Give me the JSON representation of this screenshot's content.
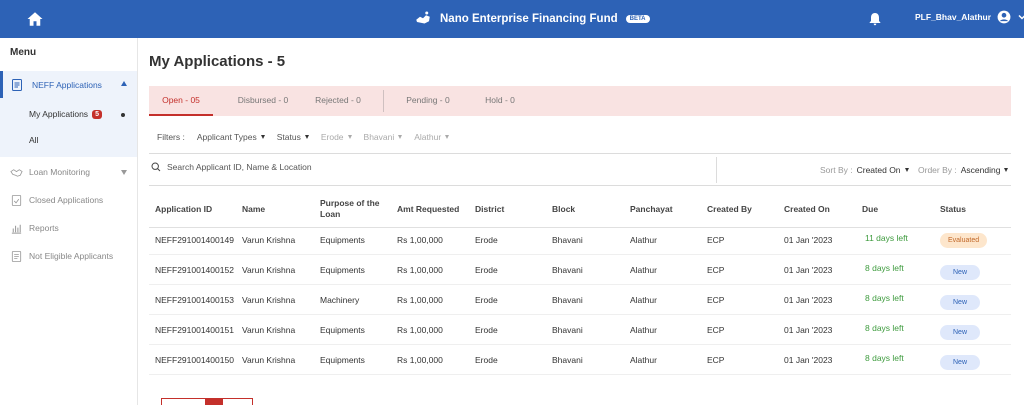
{
  "header": {
    "app_title": "Nano Enterprise Financing Fund",
    "beta_badge": "BETA",
    "username": "PLF_Bhav_Alathur"
  },
  "sidebar": {
    "menu_title": "Menu",
    "group": {
      "label": "NEFF Applications",
      "items": [
        {
          "label": "My Applications",
          "count": "5"
        },
        {
          "label": "All"
        }
      ]
    },
    "items": [
      {
        "label": "Loan Monitoring"
      },
      {
        "label": "Closed Applications"
      },
      {
        "label": "Reports"
      },
      {
        "label": "Not Eligible Applicants"
      }
    ]
  },
  "main": {
    "title": "My Applications - 5",
    "tabs": [
      {
        "label": "Open - 05"
      },
      {
        "label": "Disbursed - 0"
      },
      {
        "label": "Rejected - 0"
      },
      {
        "label": "Pending - 0"
      },
      {
        "label": "Hold - 0"
      }
    ],
    "filters": {
      "label": "Filters :",
      "options": [
        "Applicant Types",
        "Status",
        "Erode",
        "Bhavani",
        "Alathur"
      ]
    },
    "search": {
      "placeholder": "Search Applicant ID, Name & Location"
    },
    "sort": {
      "label": "Sort By :",
      "value": "Created On"
    },
    "order": {
      "label": "Order By :",
      "value": "Ascending"
    },
    "table": {
      "columns": [
        "Application ID",
        "Name",
        "Purpose of the Loan",
        "Amt Requested",
        "District",
        "Block",
        "Panchayat",
        "Created By",
        "Created On",
        "Due",
        "Status"
      ],
      "rows": [
        [
          "NEFF291001400149",
          "Varun Krishna",
          "Equipments",
          "Rs 1,00,000",
          "Erode",
          "Bhavani",
          "Alathur",
          "ECP",
          "01 Jan '2023",
          "11 days left",
          "Evaluated"
        ],
        [
          "NEFF291001400152",
          "Varun Krishna",
          "Equipments",
          "Rs 1,00,000",
          "Erode",
          "Bhavani",
          "Alathur",
          "ECP",
          "01 Jan '2023",
          "8 days left",
          "New"
        ],
        [
          "NEFF291001400153",
          "Varun Krishna",
          "Machinery",
          "Rs 1,00,000",
          "Erode",
          "Bhavani",
          "Alathur",
          "ECP",
          "01 Jan '2023",
          "8 days left",
          "New"
        ],
        [
          "NEFF291001400151",
          "Varun Krishna",
          "Equipments",
          "Rs 1,00,000",
          "Erode",
          "Bhavani",
          "Alathur",
          "ECP",
          "01 Jan '2023",
          "8 days left",
          "New"
        ],
        [
          "NEFF291001400150",
          "Varun Krishna",
          "Equipments",
          "Rs 1,00,000",
          "Erode",
          "Bhavani",
          "Alathur",
          "ECP",
          "01 Jan '2023",
          "8 days left",
          "New"
        ]
      ]
    }
  },
  "colors": {
    "primary": "#2d62b6",
    "accent": "#c4302b",
    "tab_bg": "#f9e3e2",
    "due_green": "#3e9b3e"
  }
}
